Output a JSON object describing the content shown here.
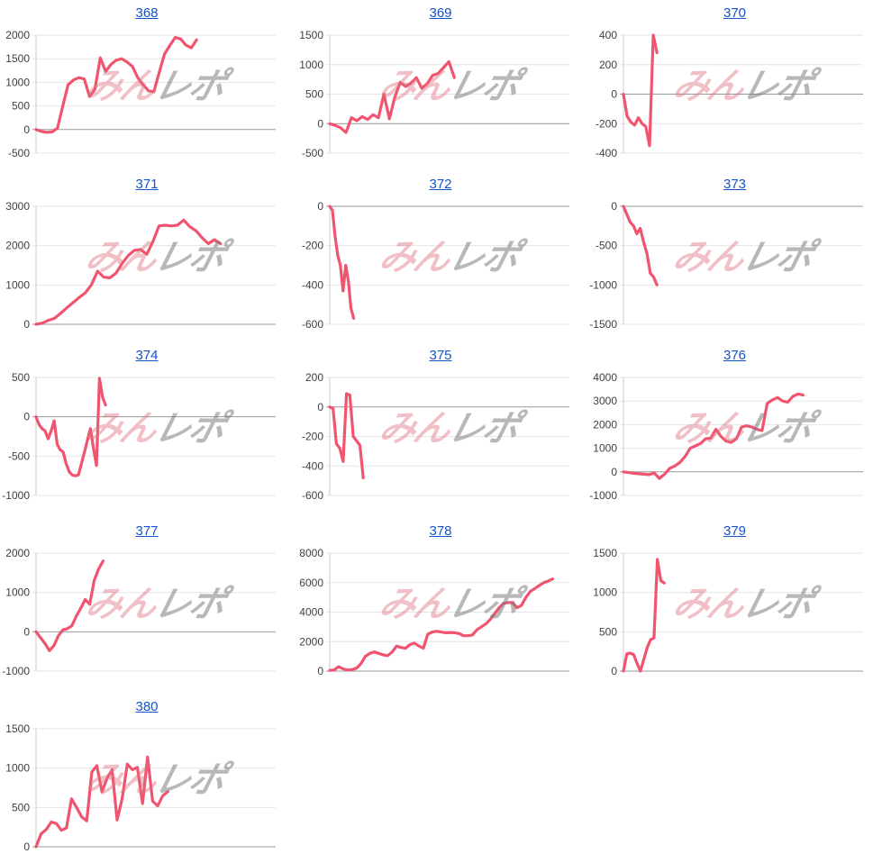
{
  "page": {
    "background": "#ffffff"
  },
  "watermark": {
    "pink_text": "みん",
    "gray_text": "レポ"
  },
  "colors": {
    "line": "#f0546e",
    "grid": "#e6e6e6",
    "zero_line": "#999999",
    "axis": "#cccccc",
    "tick_label": "#404040",
    "link": "#1553c9",
    "watermark_pink": "rgba(222,115,128,0.45)",
    "watermark_gray": "rgba(125,125,125,0.55)"
  },
  "chart_data": [
    {
      "id": "368",
      "title": "368",
      "type": "line",
      "ylim": [
        -500,
        2000
      ],
      "yticks": [
        2000,
        1500,
        1000,
        500,
        0,
        -500
      ],
      "x_end_frac": 0.67,
      "grid": true,
      "xlabel": "",
      "ylabel": "",
      "values": [
        0,
        -40,
        -60,
        -50,
        30,
        500,
        950,
        1050,
        1100,
        1070,
        700,
        850,
        1520,
        1230,
        1380,
        1470,
        1500,
        1430,
        1340,
        1100,
        950,
        820,
        800,
        1200,
        1600,
        1780,
        1950,
        1920,
        1790,
        1730,
        1900
      ]
    },
    {
      "id": "369",
      "title": "369",
      "type": "line",
      "ylim": [
        -500,
        1500
      ],
      "yticks": [
        1500,
        1000,
        500,
        0,
        -500
      ],
      "x_end_frac": 0.52,
      "grid": true,
      "xlabel": "",
      "ylabel": "",
      "values": [
        0,
        -30,
        -70,
        -150,
        100,
        50,
        120,
        70,
        150,
        100,
        500,
        80,
        450,
        700,
        630,
        690,
        780,
        600,
        680,
        820,
        850,
        950,
        1050,
        780
      ]
    },
    {
      "id": "370",
      "title": "370",
      "type": "line",
      "ylim": [
        -400,
        400
      ],
      "yticks": [
        400,
        200,
        0,
        -200,
        -400
      ],
      "x_end_frac": 0.14,
      "grid": true,
      "xlabel": "",
      "ylabel": "",
      "values": [
        0,
        -150,
        -190,
        -210,
        -160,
        -200,
        -220,
        -350,
        400,
        280
      ]
    },
    {
      "id": "371",
      "title": "371",
      "type": "line",
      "ylim": [
        0,
        3000
      ],
      "yticks": [
        3000,
        2000,
        1000,
        0
      ],
      "x_end_frac": 0.77,
      "grid": true,
      "xlabel": "",
      "ylabel": "",
      "values": [
        0,
        30,
        100,
        150,
        280,
        420,
        550,
        680,
        800,
        1000,
        1350,
        1200,
        1180,
        1300,
        1550,
        1750,
        1880,
        1900,
        1780,
        2100,
        2500,
        2520,
        2500,
        2520,
        2650,
        2480,
        2380,
        2200,
        2050,
        2150,
        2050
      ]
    },
    {
      "id": "372",
      "title": "372",
      "type": "line",
      "ylim": [
        -600,
        0
      ],
      "yticks": [
        0,
        -200,
        -400,
        -600
      ],
      "x_end_frac": 0.1,
      "grid": true,
      "xlabel": "",
      "ylabel": "",
      "values": [
        0,
        -20,
        -150,
        -250,
        -300,
        -430,
        -300,
        -380,
        -520,
        -570
      ]
    },
    {
      "id": "373",
      "title": "373",
      "type": "line",
      "ylim": [
        -1500,
        0
      ],
      "yticks": [
        0,
        -500,
        -1000,
        -1500
      ],
      "x_end_frac": 0.14,
      "grid": true,
      "xlabel": "",
      "ylabel": "",
      "values": [
        0,
        -100,
        -200,
        -250,
        -350,
        -280,
        -450,
        -600,
        -850,
        -900,
        -1000
      ]
    },
    {
      "id": "374",
      "title": "374",
      "type": "line",
      "ylim": [
        -1000,
        500
      ],
      "yticks": [
        500,
        0,
        -500,
        -1000
      ],
      "x_end_frac": 0.29,
      "grid": true,
      "xlabel": "",
      "ylabel": "",
      "values": [
        0,
        -100,
        -150,
        -180,
        -280,
        -180,
        -50,
        -350,
        -420,
        -450,
        -600,
        -700,
        -740,
        -750,
        -740,
        -600,
        -450,
        -300,
        -150,
        -400,
        -620,
        490,
        250,
        150
      ]
    },
    {
      "id": "375",
      "title": "375",
      "type": "line",
      "ylim": [
        -600,
        200
      ],
      "yticks": [
        200,
        0,
        -200,
        -400,
        -600
      ],
      "x_end_frac": 0.14,
      "grid": true,
      "xlabel": "",
      "ylabel": "",
      "values": [
        0,
        -10,
        -250,
        -280,
        -370,
        90,
        80,
        -200,
        -230,
        -260,
        -480
      ]
    },
    {
      "id": "376",
      "title": "376",
      "type": "line",
      "ylim": [
        -1000,
        4000
      ],
      "yticks": [
        4000,
        3000,
        2000,
        1000,
        0,
        -1000
      ],
      "x_end_frac": 0.75,
      "grid": true,
      "xlabel": "",
      "ylabel": "",
      "values": [
        0,
        -30,
        -60,
        -80,
        -100,
        -120,
        -50,
        -280,
        -100,
        150,
        250,
        400,
        650,
        1000,
        1100,
        1200,
        1400,
        1430,
        1800,
        1500,
        1300,
        1250,
        1400,
        1900,
        1950,
        1900,
        1800,
        1750,
        2900,
        3050,
        3150,
        3000,
        2950,
        3200,
        3300,
        3250
      ]
    },
    {
      "id": "377",
      "title": "377",
      "type": "line",
      "ylim": [
        -1000,
        2000
      ],
      "yticks": [
        2000,
        1000,
        0,
        -1000
      ],
      "x_end_frac": 0.28,
      "grid": true,
      "xlabel": "",
      "ylabel": "",
      "values": [
        0,
        -150,
        -300,
        -480,
        -350,
        -100,
        50,
        80,
        150,
        400,
        600,
        820,
        700,
        1300,
        1600,
        1800
      ]
    },
    {
      "id": "378",
      "title": "378",
      "type": "line",
      "ylim": [
        0,
        8000
      ],
      "yticks": [
        8000,
        6000,
        4000,
        2000,
        0
      ],
      "x_end_frac": 0.93,
      "grid": true,
      "xlabel": "",
      "ylabel": "",
      "values": [
        50,
        80,
        300,
        150,
        80,
        100,
        200,
        500,
        1000,
        1200,
        1300,
        1200,
        1100,
        1050,
        1300,
        1700,
        1600,
        1550,
        1800,
        1900,
        1700,
        1550,
        2500,
        2650,
        2700,
        2650,
        2600,
        2620,
        2600,
        2550,
        2400,
        2400,
        2450,
        2800,
        3000,
        3200,
        3500,
        3900,
        4300,
        4600,
        4650,
        4650,
        4300,
        4450,
        5000,
        5400,
        5600,
        5800,
        6000,
        6100,
        6250
      ]
    },
    {
      "id": "379",
      "title": "379",
      "type": "line",
      "ylim": [
        0,
        1500
      ],
      "yticks": [
        1500,
        1000,
        500,
        0
      ],
      "x_end_frac": 0.17,
      "grid": true,
      "xlabel": "",
      "ylabel": "",
      "values": [
        0,
        220,
        230,
        210,
        100,
        0,
        150,
        300,
        400,
        420,
        1420,
        1150,
        1120
      ]
    },
    {
      "id": "380",
      "title": "380",
      "type": "line",
      "ylim": [
        0,
        1500
      ],
      "yticks": [
        1500,
        1000,
        500,
        0
      ],
      "x_end_frac": 0.55,
      "grid": true,
      "xlabel": "",
      "ylabel": "",
      "values": [
        0,
        165,
        220,
        315,
        295,
        210,
        240,
        610,
        500,
        380,
        330,
        950,
        1030,
        700,
        870,
        980,
        340,
        620,
        1050,
        980,
        1010,
        550,
        1140,
        580,
        520,
        650,
        700
      ]
    }
  ]
}
